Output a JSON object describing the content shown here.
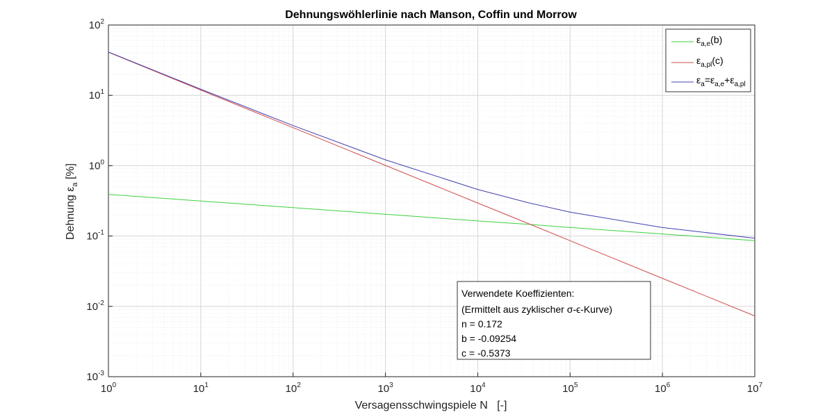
{
  "chart_data": {
    "type": "line",
    "title": "Dehnungswöhlerlinie nach Manson, Coffin und Morrow",
    "xlabel": "Versagensschwingspiele N   [-]",
    "ylabel_main": "Dehnung ",
    "ylabel_symbol": "ε",
    "ylabel_sub": "a",
    "ylabel_unit": " [%]",
    "x_scale": "log",
    "y_scale": "log",
    "xlim": [
      1,
      10000000
    ],
    "ylim": [
      0.001,
      100
    ],
    "x_ticks": [
      {
        "base": "10",
        "exp": "0",
        "value": 1
      },
      {
        "base": "10",
        "exp": "1",
        "value": 10
      },
      {
        "base": "10",
        "exp": "2",
        "value": 100
      },
      {
        "base": "10",
        "exp": "3",
        "value": 1000
      },
      {
        "base": "10",
        "exp": "4",
        "value": 10000
      },
      {
        "base": "10",
        "exp": "5",
        "value": 100000
      },
      {
        "base": "10",
        "exp": "6",
        "value": 1000000
      },
      {
        "base": "10",
        "exp": "7",
        "value": 10000000
      }
    ],
    "y_ticks": [
      {
        "base": "10",
        "exp": "-3",
        "value": 0.001
      },
      {
        "base": "10",
        "exp": "-2",
        "value": 0.01
      },
      {
        "base": "10",
        "exp": "-1",
        "value": 0.1
      },
      {
        "base": "10",
        "exp": "0",
        "value": 1
      },
      {
        "base": "10",
        "exp": "1",
        "value": 10
      },
      {
        "base": "10",
        "exp": "2",
        "value": 100
      }
    ],
    "grid": true,
    "minor_grid": true,
    "legend_position": "top-right",
    "x": [
      1,
      10,
      100,
      1000,
      10000,
      35000,
      100000,
      1000000,
      10000000
    ],
    "series": [
      {
        "color": "#3cd23c",
        "legend": {
          "sym": "ε",
          "sub": "a,e",
          "suffix": "(b)"
        },
        "values": [
          0.39,
          0.315,
          0.253,
          0.204,
          0.164,
          0.147,
          0.132,
          0.107,
          0.086
        ]
      },
      {
        "color": "#d04848",
        "legend": {
          "sym": "ε",
          "sub": "a,pl",
          "suffix": "(c)"
        },
        "values": [
          41.0,
          11.9,
          3.47,
          1.01,
          0.295,
          0.151,
          0.0859,
          0.025,
          0.0073
        ]
      },
      {
        "color": "#4040b0",
        "legend": {
          "sym": "ε",
          "sub": "a",
          "eq": "=",
          "sym2": "ε",
          "sub2": "a,e",
          "plus": "+",
          "sym3": "ε",
          "sub3": "a,pl"
        },
        "values": [
          41.39,
          12.22,
          3.72,
          1.21,
          0.459,
          0.298,
          0.218,
          0.132,
          0.093
        ]
      }
    ],
    "annotation": {
      "lines": [
        "Verwendete Koeffizienten:",
        "(Ermittelt aus zyklischer σ-ϵ-Kurve)",
        "n = 0.172",
        "b = -0.09254",
        "c = -0.5373"
      ]
    }
  }
}
